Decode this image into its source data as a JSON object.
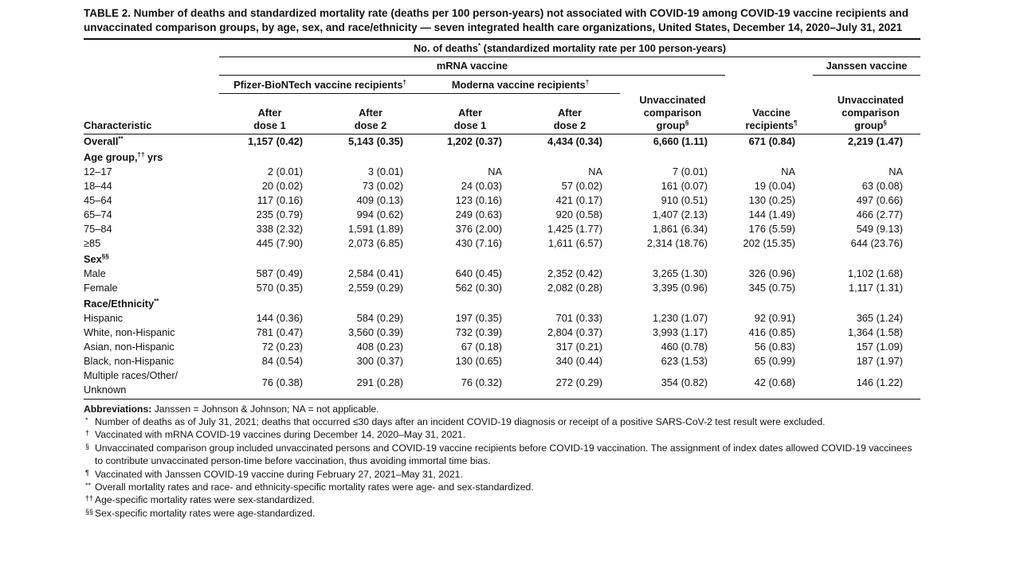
{
  "title": "TABLE 2. Number of deaths and standardized mortality rate (deaths per 100 person-years) not associated with COVID-19 among COVID-19 vaccine recipients and unvaccinated comparison groups, by age, sex, and race/ethnicity — seven integrated health care organizations, United States, December 14, 2020–July 31, 2021",
  "header": {
    "top": "No. of deaths",
    "top_mark": "*",
    "top_rest": " (standardized mortality rate per 100 person-years)",
    "mrna": "mRNA vaccine",
    "janssen": "Janssen vaccine",
    "pfizer": "Pfizer-BioNTech vaccine recipients",
    "pfizer_mark": "†",
    "moderna": "Moderna vaccine recipients",
    "moderna_mark": "†",
    "characteristic": "Characteristic",
    "after_dose_1": "After dose 1",
    "after_dose_2": "After dose 2",
    "unvax_a": "Unvaccinated comparison group",
    "unvax_mark": "§",
    "vaccine_recipients": "Vaccine recipients",
    "vaccine_recipients_mark": "¶"
  },
  "rows": [
    {
      "type": "bold",
      "label": "Overall",
      "mark": "**",
      "values": [
        "1,157 (0.42)",
        "5,143 (0.35)",
        "1,202 (0.37)",
        "4,434 (0.34)",
        "6,660 (1.11)",
        "671 (0.84)",
        "2,219 (1.47)"
      ]
    },
    {
      "type": "section",
      "label": "Age group,",
      "mark": "††",
      "suffix": " yrs"
    },
    {
      "type": "data",
      "label": "12–17",
      "values": [
        "2 (0.01)",
        "3 (0.01)",
        "NA",
        "NA",
        "7 (0.01)",
        "NA",
        "NA"
      ]
    },
    {
      "type": "data",
      "label": "18–44",
      "values": [
        "20 (0.02)",
        "73 (0.02)",
        "24 (0.03)",
        "57 (0.02)",
        "161 (0.07)",
        "19 (0.04)",
        "63 (0.08)"
      ]
    },
    {
      "type": "data",
      "label": "45–64",
      "values": [
        "117 (0.16)",
        "409 (0.13)",
        "123 (0.16)",
        "421 (0.17)",
        "910 (0.51)",
        "130 (0.25)",
        "497 (0.66)"
      ]
    },
    {
      "type": "data",
      "label": "65–74",
      "values": [
        "235 (0.79)",
        "994 (0.62)",
        "249 (0.63)",
        "920 (0.58)",
        "1,407 (2.13)",
        "144 (1.49)",
        "466 (2.77)"
      ]
    },
    {
      "type": "data",
      "label": "75–84",
      "values": [
        "338 (2.32)",
        "1,591 (1.89)",
        "376 (2.00)",
        "1,425 (1.77)",
        "1,861 (6.34)",
        "176 (5.59)",
        "549 (9.13)"
      ]
    },
    {
      "type": "data",
      "label": "≥85",
      "values": [
        "445 (7.90)",
        "2,073 (6.85)",
        "430 (7.16)",
        "1,611 (6.57)",
        "2,314 (18.76)",
        "202 (15.35)",
        "644 (23.76)"
      ]
    },
    {
      "type": "section",
      "label": "Sex",
      "mark": "§§",
      "suffix": ""
    },
    {
      "type": "data",
      "label": "Male",
      "values": [
        "587 (0.49)",
        "2,584 (0.41)",
        "640 (0.45)",
        "2,352 (0.42)",
        "3,265 (1.30)",
        "326 (0.96)",
        "1,102 (1.68)"
      ]
    },
    {
      "type": "data",
      "label": "Female",
      "values": [
        "570 (0.35)",
        "2,559 (0.29)",
        "562 (0.30)",
        "2,082 (0.28)",
        "3,395 (0.96)",
        "345 (0.75)",
        "1,117 (1.31)"
      ]
    },
    {
      "type": "section",
      "label": "Race/Ethnicity",
      "mark": "**",
      "suffix": ""
    },
    {
      "type": "data",
      "label": "Hispanic",
      "values": [
        "144 (0.36)",
        "584 (0.29)",
        "197 (0.35)",
        "701 (0.33)",
        "1,230 (1.07)",
        "92 (0.91)",
        "365 (1.24)"
      ]
    },
    {
      "type": "data",
      "label": "White, non-Hispanic",
      "values": [
        "781 (0.47)",
        "3,560 (0.39)",
        "732 (0.39)",
        "2,804 (0.37)",
        "3,993 (1.17)",
        "416 (0.85)",
        "1,364 (1.58)"
      ]
    },
    {
      "type": "data",
      "label": "Asian, non-Hispanic",
      "values": [
        "72 (0.23)",
        "408 (0.23)",
        "67 (0.18)",
        "317 (0.21)",
        "460 (0.78)",
        "56 (0.83)",
        "157 (1.09)"
      ]
    },
    {
      "type": "data",
      "label": "Black, non-Hispanic",
      "values": [
        "84 (0.54)",
        "300 (0.37)",
        "130 (0.65)",
        "340 (0.44)",
        "623 (1.53)",
        "65 (0.99)",
        "187 (1.97)"
      ]
    },
    {
      "type": "data",
      "label": "Multiple races/Other/ Unknown",
      "values": [
        "76 (0.38)",
        "291 (0.28)",
        "76 (0.32)",
        "272 (0.29)",
        "354 (0.82)",
        "42 (0.68)",
        "146 (1.22)"
      ]
    }
  ],
  "abbreviations": {
    "label": "Abbreviations:",
    "text": " Janssen = Johnson & Johnson; NA = not applicable."
  },
  "footnotes": [
    {
      "mark": "*",
      "text": "Number of deaths as of July 31, 2021; deaths that occurred ≤30 days after an incident COVID-19 diagnosis or receipt of a positive SARS-CoV-2 test result were excluded."
    },
    {
      "mark": "†",
      "text": "Vaccinated with mRNA COVID-19 vaccines during December 14, 2020–May 31, 2021."
    },
    {
      "mark": "§",
      "text": "Unvaccinated comparison group included unvaccinated persons and COVID-19 vaccine recipients before COVID-19 vaccination. The assignment of index dates allowed COVID-19 vaccinees to contribute unvaccinated person-time before vaccination, thus avoiding immortal time bias."
    },
    {
      "mark": "¶",
      "text": "Vaccinated with Janssen COVID-19 vaccine during February 27, 2021–May 31, 2021."
    },
    {
      "mark": "**",
      "text": "Overall mortality rates and race- and ethnicity-specific mortality rates were age- and sex-standardized."
    },
    {
      "mark": "††",
      "text": "Age-specific mortality rates were sex-standardized."
    },
    {
      "mark": "§§",
      "text": "Sex-specific mortality rates were age-standardized."
    }
  ]
}
